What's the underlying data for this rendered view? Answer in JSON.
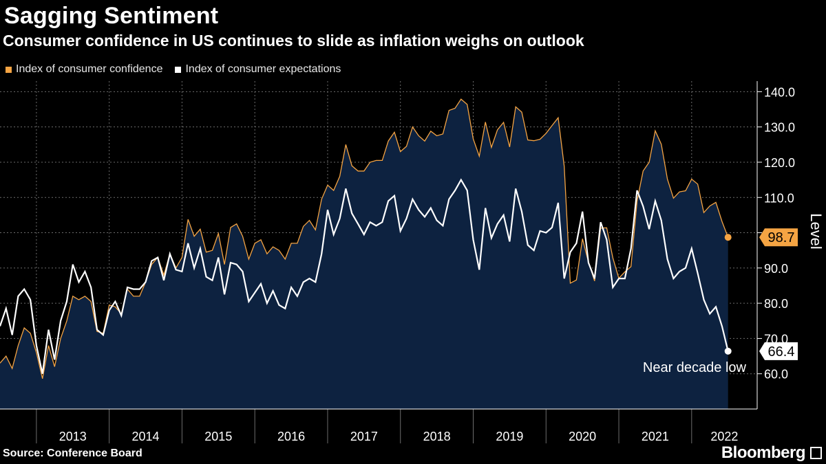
{
  "header": {
    "title": "Sagging Sentiment",
    "subtitle": "Consumer confidence in US continues to slide as inflation weighs on outlook"
  },
  "footer": {
    "source": "Source: Conference Board",
    "brand": "Bloomberg"
  },
  "colors": {
    "confidence": "#f5a443",
    "expectations": "#ffffff",
    "area": "#0d2240",
    "background": "#000000",
    "grid": "#6d6d6d"
  },
  "chart_data": {
    "type": "area",
    "ylabel": "Level",
    "ylim": [
      50,
      143
    ],
    "yticks": [
      60,
      70,
      80,
      90,
      100,
      110,
      120,
      130,
      140
    ],
    "ytick_labels": [
      "60.0",
      "70.0",
      "80.0",
      "90.0",
      "100.0",
      "110.0",
      "120.0",
      "130.0",
      "140.0"
    ],
    "xlim": [
      2012.5,
      2022.9
    ],
    "x_labels": [
      "2013",
      "2014",
      "2015",
      "2016",
      "2017",
      "2018",
      "2019",
      "2020",
      "2021",
      "2022"
    ],
    "grid": true,
    "legend_placement": "top-left",
    "annotation": "Near decade low",
    "series": [
      {
        "name": "Index of consumer confidence",
        "end_label": "98.7",
        "x": [
          2012.5,
          2012.583,
          2012.667,
          2012.75,
          2012.833,
          2012.917,
          2013.0,
          2013.083,
          2013.167,
          2013.25,
          2013.333,
          2013.417,
          2013.5,
          2013.583,
          2013.667,
          2013.75,
          2013.833,
          2013.917,
          2014.0,
          2014.083,
          2014.167,
          2014.25,
          2014.333,
          2014.417,
          2014.5,
          2014.583,
          2014.667,
          2014.75,
          2014.833,
          2014.917,
          2015.0,
          2015.083,
          2015.167,
          2015.25,
          2015.333,
          2015.417,
          2015.5,
          2015.583,
          2015.667,
          2015.75,
          2015.833,
          2015.917,
          2016.0,
          2016.083,
          2016.167,
          2016.25,
          2016.333,
          2016.417,
          2016.5,
          2016.583,
          2016.667,
          2016.75,
          2016.833,
          2016.917,
          2017.0,
          2017.083,
          2017.167,
          2017.25,
          2017.333,
          2017.417,
          2017.5,
          2017.583,
          2017.667,
          2017.75,
          2017.833,
          2017.917,
          2018.0,
          2018.083,
          2018.167,
          2018.25,
          2018.333,
          2018.417,
          2018.5,
          2018.583,
          2018.667,
          2018.75,
          2018.833,
          2018.917,
          2019.0,
          2019.083,
          2019.167,
          2019.25,
          2019.333,
          2019.417,
          2019.5,
          2019.583,
          2019.667,
          2019.75,
          2019.833,
          2019.917,
          2020.0,
          2020.083,
          2020.167,
          2020.25,
          2020.333,
          2020.417,
          2020.5,
          2020.583,
          2020.667,
          2020.75,
          2020.833,
          2020.917,
          2021.0,
          2021.083,
          2021.167,
          2021.25,
          2021.333,
          2021.417,
          2021.5,
          2021.583,
          2021.667,
          2021.75,
          2021.833,
          2021.917,
          2022.0,
          2022.083,
          2022.167,
          2022.25,
          2022.333,
          2022.417,
          2022.5
        ],
        "values": [
          63.0,
          65.0,
          61.5,
          68.0,
          73.0,
          71.5,
          66.0,
          58.6,
          68.0,
          62.0,
          70.0,
          75.0,
          82.0,
          81.0,
          82.0,
          80.5,
          72.0,
          71.5,
          79.5,
          79.0,
          77.0,
          84.0,
          82.0,
          82.0,
          86.0,
          91.0,
          93.0,
          88.0,
          94.0,
          90.0,
          93.0,
          103.8,
          99.0,
          101.0,
          94.5,
          95.0,
          99.8,
          91.0,
          101.5,
          102.5,
          99.0,
          92.5,
          97.0,
          98.0,
          94.0,
          96.0,
          95.0,
          92.5,
          97.0,
          97.0,
          101.8,
          103.5,
          100.8,
          109.5,
          113.5,
          112.0,
          116.0,
          125.0,
          119.0,
          117.5,
          117.5,
          120.0,
          120.5,
          120.5,
          126.0,
          128.5,
          123.0,
          124.5,
          130.0,
          127.5,
          126.0,
          128.8,
          127.5,
          128.0,
          134.7,
          135.3,
          137.9,
          136.4,
          126.6,
          121.7,
          131.4,
          124.2,
          129.2,
          131.3,
          124.3,
          135.7,
          134.2,
          126.3,
          126.1,
          126.5,
          128.2,
          130.4,
          132.6,
          118.8,
          85.7,
          86.6,
          98.3,
          91.7,
          86.3,
          101.3,
          101.4,
          92.9,
          87.1,
          88.9,
          90.4,
          109.0,
          117.5,
          120.0,
          128.9,
          125.1,
          115.2,
          109.8,
          111.6,
          111.9,
          115.2,
          113.8,
          105.7,
          107.6,
          108.6,
          103.2,
          98.7
        ]
      },
      {
        "name": "Index of consumer expectations",
        "end_label": "66.4",
        "x": [
          2012.5,
          2012.583,
          2012.667,
          2012.75,
          2012.833,
          2012.917,
          2013.0,
          2013.083,
          2013.167,
          2013.25,
          2013.333,
          2013.417,
          2013.5,
          2013.583,
          2013.667,
          2013.75,
          2013.833,
          2013.917,
          2014.0,
          2014.083,
          2014.167,
          2014.25,
          2014.333,
          2014.417,
          2014.5,
          2014.583,
          2014.667,
          2014.75,
          2014.833,
          2014.917,
          2015.0,
          2015.083,
          2015.167,
          2015.25,
          2015.333,
          2015.417,
          2015.5,
          2015.583,
          2015.667,
          2015.75,
          2015.833,
          2015.917,
          2016.0,
          2016.083,
          2016.167,
          2016.25,
          2016.333,
          2016.417,
          2016.5,
          2016.583,
          2016.667,
          2016.75,
          2016.833,
          2016.917,
          2017.0,
          2017.083,
          2017.167,
          2017.25,
          2017.333,
          2017.417,
          2017.5,
          2017.583,
          2017.667,
          2017.75,
          2017.833,
          2017.917,
          2018.0,
          2018.083,
          2018.167,
          2018.25,
          2018.333,
          2018.417,
          2018.5,
          2018.583,
          2018.667,
          2018.75,
          2018.833,
          2018.917,
          2019.0,
          2019.083,
          2019.167,
          2019.25,
          2019.333,
          2019.417,
          2019.5,
          2019.583,
          2019.667,
          2019.75,
          2019.833,
          2019.917,
          2020.0,
          2020.083,
          2020.167,
          2020.25,
          2020.333,
          2020.417,
          2020.5,
          2020.583,
          2020.667,
          2020.75,
          2020.833,
          2020.917,
          2021.0,
          2021.083,
          2021.167,
          2021.25,
          2021.333,
          2021.417,
          2021.5,
          2021.583,
          2021.667,
          2021.75,
          2021.833,
          2021.917,
          2022.0,
          2022.083,
          2022.167,
          2022.25,
          2022.333,
          2022.417,
          2022.5
        ],
        "values": [
          73.5,
          78.5,
          71.0,
          82.0,
          84.0,
          81.0,
          68.0,
          60.0,
          72.5,
          64.0,
          75.0,
          80.5,
          91.0,
          86.0,
          89.0,
          84.5,
          72.5,
          71.0,
          78.0,
          80.5,
          76.5,
          84.5,
          84.0,
          84.0,
          86.0,
          92.0,
          93.0,
          86.5,
          94.0,
          89.5,
          89.0,
          97.0,
          90.0,
          95.5,
          87.5,
          86.5,
          93.0,
          82.5,
          91.5,
          91.0,
          89.0,
          80.5,
          83.0,
          85.5,
          80.0,
          83.5,
          79.5,
          78.5,
          84.5,
          82.0,
          86.0,
          87.0,
          86.0,
          94.0,
          106.5,
          99.5,
          104.0,
          112.5,
          105.5,
          102.5,
          99.5,
          103.0,
          102.0,
          103.0,
          109.0,
          110.5,
          100.5,
          104.0,
          109.5,
          106.5,
          104.5,
          107.0,
          103.5,
          102.0,
          109.5,
          112.0,
          115.0,
          112.0,
          98.0,
          89.5,
          107.0,
          98.5,
          102.5,
          105.0,
          97.5,
          112.5,
          106.0,
          96.5,
          95.0,
          100.5,
          100.0,
          101.5,
          108.5,
          87.0,
          94.5,
          97.0,
          106.0,
          91.5,
          87.0,
          103.0,
          98.0,
          84.5,
          87.0,
          87.0,
          95.5,
          112.0,
          107.5,
          101.0,
          109.0,
          103.5,
          92.5,
          87.0,
          89.0,
          90.0,
          95.5,
          88.5,
          81.0,
          77.0,
          79.0,
          73.5,
          66.4
        ]
      }
    ]
  }
}
